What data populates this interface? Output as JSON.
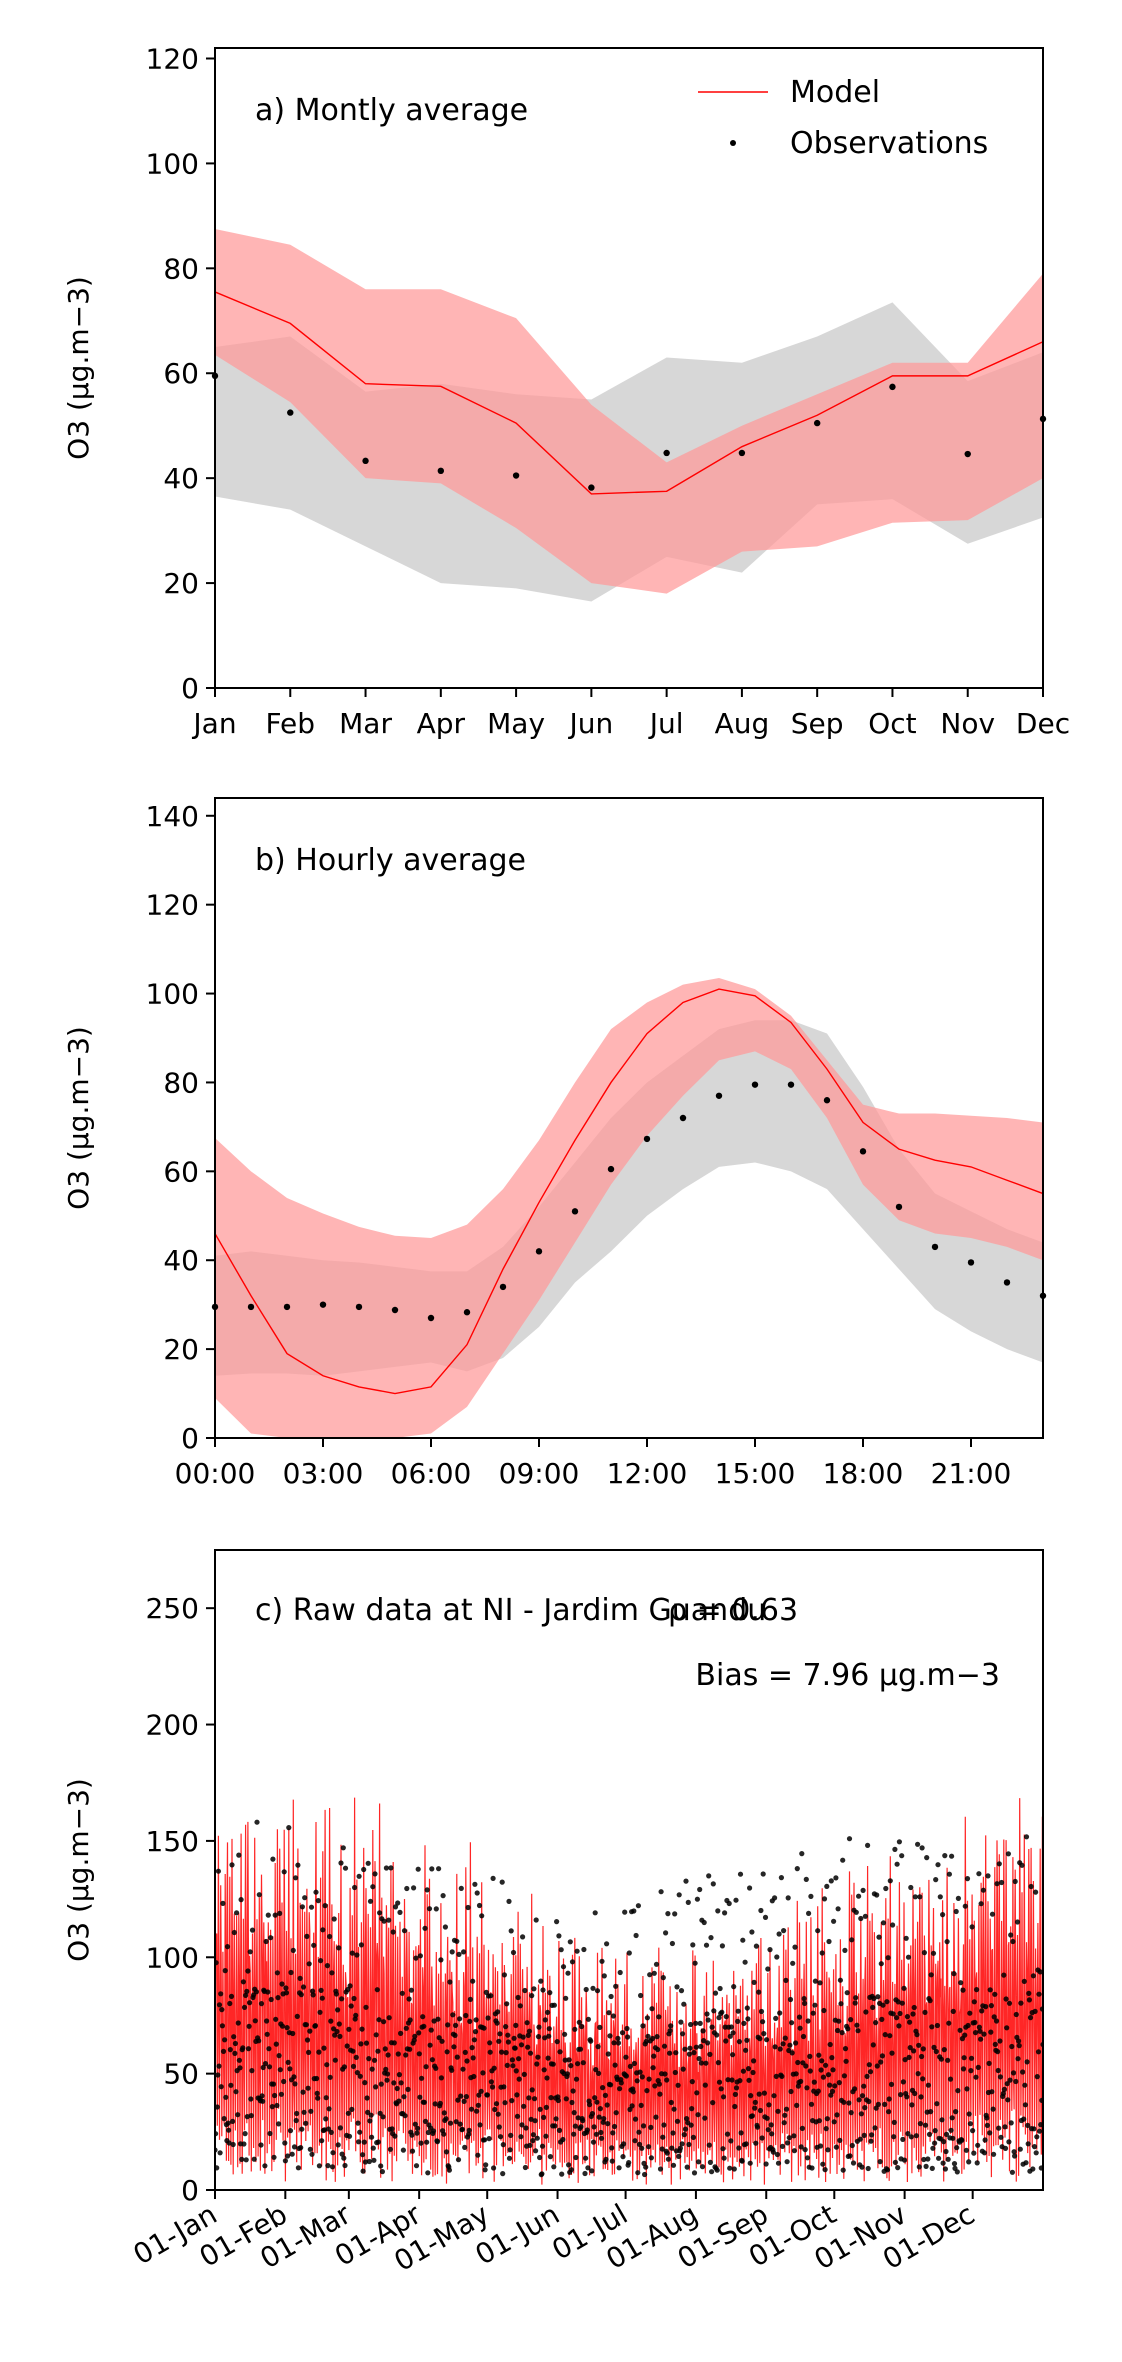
{
  "chart_data": [
    {
      "type": "line",
      "title": "a) Montly average",
      "xlabel": "",
      "ylabel": "O3 (µg.m−3)",
      "ylim": [
        0,
        122
      ],
      "yticks": [
        0,
        20,
        40,
        60,
        80,
        100,
        120
      ],
      "categories": [
        "Jan",
        "Feb",
        "Mar",
        "Apr",
        "May",
        "Jun",
        "Jul",
        "Aug",
        "Sep",
        "Oct",
        "Nov",
        "Dec"
      ],
      "legend_position": "top-right",
      "legend": [
        "Model",
        "Observations"
      ],
      "series": [
        {
          "name": "Model",
          "style": "line",
          "color": "#ff0000",
          "values": [
            75.5,
            69.5,
            58,
            57.5,
            50.5,
            37,
            37.5,
            46,
            52,
            59.5,
            59.5,
            66
          ],
          "band_upper": [
            87.5,
            84.5,
            76,
            76,
            70.5,
            54,
            43,
            50,
            56,
            62,
            62,
            79
          ],
          "band_lower": [
            63.5,
            54.5,
            40,
            39,
            30.5,
            20,
            18,
            26,
            27,
            31.5,
            32,
            40
          ],
          "band_color": "#ff9999"
        },
        {
          "name": "Observations",
          "style": "points",
          "color": "#000000",
          "values": [
            59.5,
            52.5,
            43.3,
            41.4,
            40.5,
            38.2,
            44.8,
            44.8,
            50.5,
            57.4,
            44.6,
            51.3
          ],
          "band_upper": [
            65,
            67,
            56.5,
            58,
            56,
            55,
            63,
            62,
            67,
            73.5,
            58.5,
            64
          ],
          "band_lower": [
            36.5,
            34,
            27,
            20,
            19,
            16.5,
            25,
            22,
            35,
            36,
            27.5,
            32.5
          ],
          "band_color": "#bfbfbf"
        }
      ]
    },
    {
      "type": "line",
      "title": "b) Hourly average",
      "xlabel": "",
      "ylabel": "O3 (µg.m−3)",
      "ylim": [
        0,
        144
      ],
      "yticks": [
        0,
        20,
        40,
        60,
        80,
        100,
        120,
        140
      ],
      "x_tick_labels": [
        "00:00",
        "03:00",
        "06:00",
        "09:00",
        "12:00",
        "15:00",
        "18:00",
        "21:00"
      ],
      "x_tick_hours": [
        0,
        3,
        6,
        9,
        12,
        15,
        18,
        21
      ],
      "x_hours": [
        0,
        1,
        2,
        3,
        4,
        5,
        6,
        7,
        8,
        9,
        10,
        11,
        12,
        13,
        14,
        15,
        16,
        17,
        18,
        19,
        20,
        21,
        22,
        23
      ],
      "series": [
        {
          "name": "Model",
          "style": "line",
          "color": "#ff0000",
          "values": [
            46,
            32,
            19,
            14,
            11.5,
            10,
            11.5,
            21,
            38,
            53,
            67,
            80,
            91,
            98,
            101,
            99.5,
            93.5,
            83,
            71,
            65,
            62.5,
            61,
            58,
            55
          ],
          "band_upper": [
            67.5,
            60,
            54,
            50.5,
            47.5,
            45.5,
            45,
            48,
            56,
            67,
            80,
            92,
            98,
            102,
            103.5,
            101,
            95,
            85,
            75,
            73,
            73,
            72.5,
            72,
            71
          ],
          "band_lower": [
            9,
            1,
            0,
            0,
            0,
            0,
            1,
            7,
            19,
            31,
            44,
            57,
            68,
            77,
            85,
            87,
            83,
            72,
            57,
            49,
            46,
            45,
            43,
            40
          ],
          "band_color": "#ff9999"
        },
        {
          "name": "Observations",
          "style": "points",
          "color": "#000000",
          "values": [
            29.5,
            29.5,
            29.5,
            30,
            29.5,
            28.8,
            27,
            28.3,
            34,
            42,
            51,
            60.5,
            67.3,
            72,
            77,
            79.5,
            79.5,
            76,
            64.5,
            52,
            43,
            39.5,
            35,
            32
          ],
          "band_upper": [
            41,
            42,
            41,
            40,
            39.5,
            38.5,
            37.5,
            37.5,
            43,
            52,
            62,
            72,
            80,
            86,
            92,
            94,
            94,
            91,
            79,
            65,
            55,
            51,
            47,
            44
          ],
          "band_lower": [
            14,
            14.5,
            14.5,
            14,
            15,
            16,
            17,
            15,
            18,
            25,
            35,
            42,
            50,
            56,
            61,
            62,
            60,
            56,
            47,
            38,
            29,
            24,
            20,
            17
          ],
          "band_color": "#bfbfbf"
        }
      ]
    },
    {
      "type": "scatter",
      "title": "c) Raw data at NI - Jardim Guandu",
      "annotations": [
        "ρ = 0.63",
        "Bias = 7.96 µg.m−3"
      ],
      "xlabel": "",
      "ylabel": "O3 (µg.m−3)",
      "ylim": [
        0,
        275
      ],
      "yticks": [
        0,
        50,
        100,
        150,
        200,
        250
      ],
      "x_tick_labels": [
        "01-Jan",
        "01-Feb",
        "01-Mar",
        "01-Apr",
        "01-May",
        "01-Jun",
        "01-Jul",
        "01-Aug",
        "01-Sep",
        "01-Oct",
        "01-Nov",
        "01-Dec"
      ],
      "x_tick_days": [
        1,
        32,
        60,
        91,
        121,
        152,
        182,
        213,
        244,
        274,
        305,
        335
      ],
      "x_range_days": [
        1,
        366
      ],
      "series": [
        {
          "name": "Model",
          "style": "line",
          "color": "#ff0000",
          "band_upper_envelope": [
            185,
            180,
            175,
            160,
            140,
            120,
            115,
            110,
            120,
            140,
            165,
            180,
            175
          ]
        },
        {
          "name": "Observations",
          "style": "points",
          "color": "#000000",
          "upper_envelope": [
            150,
            165,
            155,
            140,
            135,
            125,
            120,
            140,
            140,
            155,
            150,
            145,
            155
          ]
        }
      ]
    }
  ]
}
